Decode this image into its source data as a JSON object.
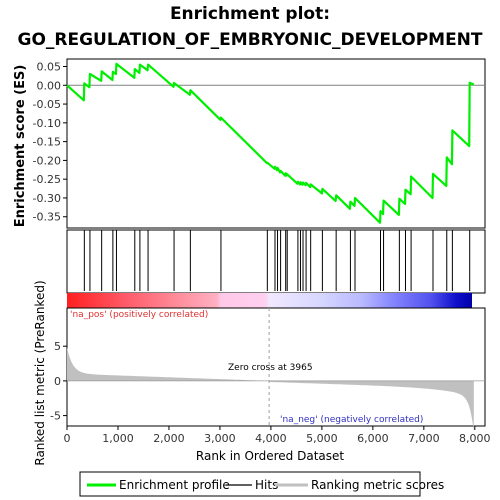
{
  "chart_data": {
    "type": "line",
    "title_line1": "Enrichment plot:",
    "title_line2": "GO_REGULATION_OF_EMBRYONIC_DEVELOPMENT",
    "ylabel_top": "Enrichment score (ES)",
    "ylabel_bottom": "Ranked list metric (PreRanked)",
    "xlabel": "Rank in Ordered Dataset",
    "xlim": [
      0,
      8200
    ],
    "x_ticks": [
      "0",
      "1,000",
      "2,000",
      "3,000",
      "4,000",
      "5,000",
      "6,000",
      "7,000",
      "8,000"
    ],
    "x_tick_values": [
      0,
      1000,
      2000,
      3000,
      4000,
      5000,
      6000,
      7000,
      8000
    ],
    "es_ylim": [
      -0.38,
      0.07
    ],
    "es_ticks": [
      "0.05",
      "0.00",
      "-0.05",
      "-0.10",
      "-0.15",
      "-0.20",
      "-0.25",
      "-0.30",
      "-0.35"
    ],
    "es_tick_values": [
      0.05,
      0.0,
      -0.05,
      -0.1,
      -0.15,
      -0.2,
      -0.25,
      -0.3,
      -0.35
    ],
    "metric_ylim": [
      -6.5,
      10.5
    ],
    "metric_ticks": [
      "5",
      "0",
      "-5"
    ],
    "metric_tick_values": [
      5,
      0,
      -5
    ],
    "pos_label": "'na_pos' (positively correlated)",
    "neg_label": "'na_neg' (negatively correlated)",
    "zero_cross_label": "Zero cross at 3965",
    "zero_cross": 3965,
    "n_genes": 7980,
    "hits": [
      340,
      450,
      680,
      900,
      970,
      1330,
      1430,
      1590,
      2100,
      2420,
      3020,
      3930,
      4080,
      4130,
      4190,
      4290,
      4320,
      4530,
      4580,
      4630,
      4690,
      4780,
      5010,
      5280,
      5560,
      5650,
      6150,
      6210,
      6520,
      6640,
      6750,
      7180,
      7450,
      7560,
      7900
    ],
    "series": [
      {
        "name": "Enrichment profile",
        "x": [
          0,
          330,
          340,
          440,
          450,
          670,
          680,
          890,
          900,
          960,
          970,
          1320,
          1330,
          1420,
          1430,
          1580,
          1590,
          2090,
          2100,
          2410,
          2420,
          3010,
          3020,
          3920,
          3930,
          4070,
          4080,
          4120,
          4130,
          4180,
          4190,
          4280,
          4290,
          4310,
          4320,
          4520,
          4530,
          4570,
          4580,
          4620,
          4630,
          4680,
          4690,
          4770,
          4780,
          5000,
          5010,
          5270,
          5280,
          5550,
          5560,
          5640,
          5650,
          6140,
          6150,
          6200,
          6210,
          6510,
          6520,
          6630,
          6640,
          6740,
          6750,
          7170,
          7180,
          7440,
          7450,
          7550,
          7560,
          7890,
          7900,
          7980
        ],
        "values": [
          0.0,
          -0.04,
          0.005,
          -0.005,
          0.03,
          0.012,
          0.037,
          0.014,
          0.036,
          0.03,
          0.057,
          0.02,
          0.043,
          0.033,
          0.055,
          0.04,
          0.055,
          -0.004,
          0.006,
          -0.025,
          -0.013,
          -0.092,
          -0.086,
          -0.207,
          -0.206,
          -0.222,
          -0.217,
          -0.226,
          -0.22,
          -0.232,
          -0.228,
          -0.241,
          -0.234,
          -0.24,
          -0.237,
          -0.262,
          -0.257,
          -0.264,
          -0.258,
          -0.265,
          -0.259,
          -0.266,
          -0.26,
          -0.271,
          -0.264,
          -0.288,
          -0.276,
          -0.308,
          -0.293,
          -0.329,
          -0.31,
          -0.321,
          -0.3,
          -0.366,
          -0.335,
          -0.343,
          -0.307,
          -0.345,
          -0.302,
          -0.316,
          -0.278,
          -0.29,
          -0.243,
          -0.3,
          -0.236,
          -0.268,
          -0.192,
          -0.21,
          -0.12,
          -0.162,
          0.007,
          0.002
        ]
      }
    ],
    "legend": [
      "Enrichment profile",
      "Hits",
      "Ranking metric scores"
    ],
    "colors": {
      "profile": "#00ee00",
      "hits": "#000000",
      "metric_fill": "#c0c0c0",
      "pos_text": "#e03030",
      "neg_text": "#3030c0",
      "zero_line": "#a0a0a0"
    }
  }
}
